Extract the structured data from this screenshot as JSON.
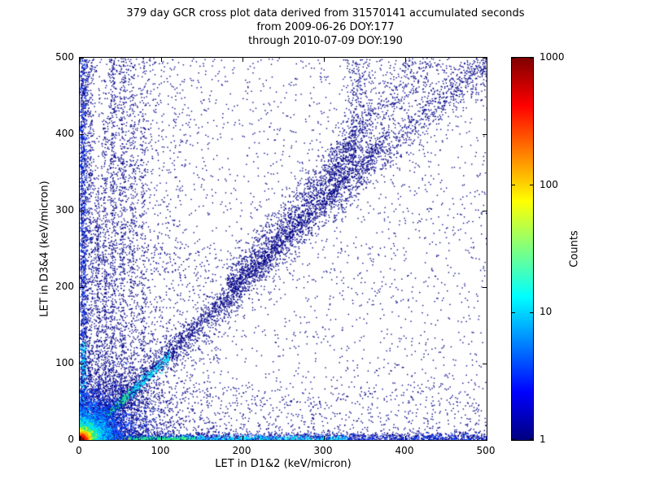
{
  "title": {
    "line1": "379 day GCR cross plot data derived from 31570141 accumulated seconds",
    "line2": "from 2009-06-26 DOY:177",
    "line3": "through 2010-07-09 DOY:190"
  },
  "chart_data": {
    "type": "heatmap",
    "title": "379 day GCR cross plot data derived from 31570141 accumulated seconds from 2009-06-26 DOY:177 through 2010-07-09 DOY:190",
    "xlabel": "LET in D1&2 (keV/micron)",
    "ylabel": "LET in D3&4 (keV/micron)",
    "xlim": [
      0,
      500
    ],
    "ylim": [
      0,
      500
    ],
    "xticks": [
      0,
      100,
      200,
      300,
      400,
      500
    ],
    "yticks": [
      0,
      100,
      200,
      300,
      400,
      500
    ],
    "grid": false,
    "colorbar": {
      "label": "Counts",
      "scale": "log",
      "min": 1,
      "max": 1000,
      "ticks": [
        1,
        10,
        100,
        1000
      ],
      "colormap": "jet"
    },
    "palette": {
      "navy": "#000087",
      "blue": "#0038ff",
      "azure": "#0090ff",
      "cyan": "#00e5ff",
      "green": "#2cf07c",
      "yellow": "#f5f500",
      "orange": "#ff8c00",
      "red": "#ff1e00",
      "darkred": "#8c0000"
    },
    "features": [
      {
        "kind": "uniform",
        "n": 2600,
        "x": [
          0,
          500
        ],
        "y": [
          0,
          500
        ],
        "color": "navy",
        "size": 1.4
      },
      {
        "kind": "uniform",
        "n": 900,
        "x": [
          0,
          130
        ],
        "y": [
          0,
          500
        ],
        "color": "navy",
        "size": 1.4
      },
      {
        "kind": "uniform",
        "n": 650,
        "x": [
          0,
          500
        ],
        "y": [
          0,
          70
        ],
        "color": "navy",
        "size": 1.4
      },
      {
        "kind": "uniform",
        "n": 650,
        "x": [
          0,
          170
        ],
        "y": [
          0,
          260
        ],
        "color": "navy",
        "size": 1.4
      },
      {
        "kind": "gauss2d",
        "n": 150,
        "cx": 450,
        "cy": 465,
        "sx": 45,
        "sy": 28,
        "color": "navy",
        "size": 1.4
      },
      {
        "kind": "diag",
        "n": 2200,
        "x": [
          0,
          500
        ],
        "slope": 1.0,
        "intercept": 0,
        "width": 14,
        "color": "navy",
        "size": 1.4
      },
      {
        "kind": "diag",
        "n": 1500,
        "x": [
          0,
          380
        ],
        "slope": 1.05,
        "intercept": 0,
        "width": 7,
        "color": "navy",
        "size": 1.4
      },
      {
        "kind": "diag",
        "n": 1500,
        "x": [
          180,
          340
        ],
        "slope": 1.2,
        "intercept": -20,
        "width": 18,
        "color": "navy",
        "size": 1.4
      },
      {
        "kind": "diag",
        "n": 650,
        "x": [
          300,
          460
        ],
        "slope": 1.3,
        "intercept": -50,
        "width": 22,
        "color": "navy",
        "size": 1.4
      },
      {
        "kind": "vstreak",
        "n": 450,
        "x": 40,
        "width": 2.5,
        "y": [
          30,
          500
        ],
        "color": "navy",
        "size": 1.4
      },
      {
        "kind": "vstreak",
        "n": 380,
        "x": 52,
        "width": 2.5,
        "y": [
          30,
          500
        ],
        "color": "navy",
        "size": 1.4
      },
      {
        "kind": "vstreak",
        "n": 300,
        "x": 64,
        "width": 2.5,
        "y": [
          40,
          500
        ],
        "color": "navy",
        "size": 1.4
      },
      {
        "kind": "vstreak",
        "n": 220,
        "x": 77,
        "width": 2.5,
        "y": [
          50,
          500
        ],
        "color": "navy",
        "size": 1.4
      },
      {
        "kind": "vstreak",
        "n": 300,
        "x": 30,
        "width": 2,
        "y": [
          20,
          420
        ],
        "color": "navy",
        "size": 1.4
      },
      {
        "kind": "vstreak",
        "n": 320,
        "x": 22,
        "width": 2,
        "y": [
          10,
          330
        ],
        "color": "navy",
        "size": 1.4
      },
      {
        "kind": "vstreak",
        "n": 400,
        "x": 12,
        "width": 3,
        "y": [
          0,
          500
        ],
        "color": "navy",
        "size": 1.4
      },
      {
        "kind": "vstreak",
        "n": 1000,
        "x": 4,
        "width": 3,
        "y": [
          0,
          500
        ],
        "color": "navy",
        "size": 1.4
      },
      {
        "kind": "vstreak",
        "n": 450,
        "x": 4,
        "width": 2.5,
        "y": [
          0,
          500
        ],
        "color": "blue",
        "size": 1.4
      },
      {
        "kind": "vstreak",
        "n": 230,
        "x": 4,
        "width": 2,
        "y": [
          0,
          130
        ],
        "color": "cyan",
        "size": 1.4
      },
      {
        "kind": "vstreak",
        "n": 260,
        "x": 343,
        "width": 9,
        "y": [
          380,
          500
        ],
        "color": "navy",
        "size": 1.4
      },
      {
        "kind": "hstreak",
        "n": 1500,
        "y": 4,
        "width": 4,
        "x": [
          0,
          500
        ],
        "color": "navy",
        "size": 1.4
      },
      {
        "kind": "hstreak",
        "n": 650,
        "y": 3,
        "width": 3,
        "x": [
          0,
          500
        ],
        "color": "blue",
        "size": 1.4
      },
      {
        "kind": "hstreak",
        "n": 600,
        "y": 2.5,
        "width": 2,
        "x": [
          0,
          330
        ],
        "color": "cyan",
        "size": 1.4
      },
      {
        "kind": "hstreak",
        "n": 350,
        "y": 2,
        "width": 1.5,
        "x": [
          0,
          140
        ],
        "color": "green",
        "size": 1.4
      },
      {
        "kind": "hstreak",
        "n": 220,
        "y": 2,
        "width": 1.2,
        "x": [
          0,
          60
        ],
        "color": "yellow",
        "size": 1.4
      },
      {
        "kind": "hstreak",
        "n": 180,
        "y": 1.5,
        "width": 1,
        "x": [
          0,
          35
        ],
        "color": "orange",
        "size": 1.4
      },
      {
        "kind": "diag",
        "n": 500,
        "x": [
          5,
          110
        ],
        "slope": 1.0,
        "intercept": 0,
        "width": 4,
        "color": "cyan",
        "size": 1.4
      },
      {
        "kind": "diag",
        "n": 300,
        "x": [
          4,
          60
        ],
        "slope": 1.0,
        "intercept": 0,
        "width": 2.5,
        "color": "green",
        "size": 1.4
      },
      {
        "kind": "diag",
        "n": 200,
        "x": [
          3,
          30
        ],
        "slope": 1.0,
        "intercept": 0,
        "width": 2,
        "color": "yellow",
        "size": 1.4
      },
      {
        "kind": "diag",
        "n": 140,
        "x": [
          2,
          20
        ],
        "slope": 1.0,
        "intercept": 0,
        "width": 1.3,
        "color": "red",
        "size": 1.4
      },
      {
        "kind": "gauss2d",
        "n": 2000,
        "cx": 0,
        "cy": 0,
        "sx": 50,
        "sy": 50,
        "color": "navy",
        "size": 1.4
      },
      {
        "kind": "gauss2d",
        "n": 1600,
        "cx": 0,
        "cy": 0,
        "sx": 30,
        "sy": 30,
        "color": "blue",
        "size": 1.4
      },
      {
        "kind": "gauss2d",
        "n": 1300,
        "cx": 0,
        "cy": 0,
        "sx": 18,
        "sy": 18,
        "color": "azure",
        "size": 1.4
      },
      {
        "kind": "gauss2d",
        "n": 1200,
        "cx": 0,
        "cy": 0,
        "sx": 12,
        "sy": 12,
        "color": "cyan",
        "size": 1.4
      },
      {
        "kind": "gauss2d",
        "n": 1000,
        "cx": 0,
        "cy": 0,
        "sx": 8,
        "sy": 8,
        "color": "green",
        "size": 1.4
      },
      {
        "kind": "gauss2d",
        "n": 800,
        "cx": 0,
        "cy": 0,
        "sx": 5.5,
        "sy": 5.5,
        "color": "yellow",
        "size": 1.4
      },
      {
        "kind": "gauss2d",
        "n": 650,
        "cx": 0,
        "cy": 0,
        "sx": 3.8,
        "sy": 3.8,
        "color": "orange",
        "size": 1.4
      },
      {
        "kind": "gauss2d",
        "n": 550,
        "cx": 0,
        "cy": 0,
        "sx": 2.6,
        "sy": 2.6,
        "color": "red",
        "size": 1.5
      },
      {
        "kind": "gauss2d",
        "n": 350,
        "cx": 0,
        "cy": 0,
        "sx": 1.6,
        "sy": 1.6,
        "color": "darkred",
        "size": 1.5
      }
    ]
  }
}
